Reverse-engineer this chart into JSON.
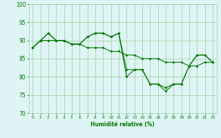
{
  "x": [
    0,
    1,
    2,
    3,
    4,
    5,
    6,
    7,
    8,
    9,
    10,
    11,
    12,
    13,
    14,
    15,
    16,
    17,
    18,
    19,
    20,
    21,
    22,
    23
  ],
  "line1": [
    88,
    90,
    92,
    90,
    90,
    89,
    89,
    91,
    92,
    92,
    91,
    92,
    80,
    82,
    82,
    78,
    78,
    77,
    78,
    78,
    83,
    86,
    86,
    84
  ],
  "line2": [
    88,
    90,
    92,
    90,
    90,
    89,
    89,
    91,
    92,
    92,
    91,
    92,
    82,
    82,
    82,
    78,
    78,
    76,
    78,
    78,
    83,
    86,
    86,
    84
  ],
  "line3": [
    88,
    90,
    90,
    90,
    90,
    89,
    89,
    88,
    88,
    88,
    87,
    87,
    86,
    86,
    85,
    85,
    85,
    84,
    84,
    84,
    83,
    83,
    84,
    84
  ],
  "background_color": "#dff4f4",
  "grid_color": "#99cc99",
  "line_color": "#007700",
  "marker": "D",
  "markersize": 2,
  "linewidth": 0.8,
  "xlabel": "Humidité relative (%)",
  "ylim": [
    70,
    100
  ],
  "xlim": [
    -0.5,
    23.5
  ],
  "yticks": [
    70,
    75,
    80,
    85,
    90,
    95,
    100
  ],
  "xticks": [
    0,
    1,
    2,
    3,
    4,
    5,
    6,
    7,
    8,
    9,
    10,
    11,
    12,
    13,
    14,
    15,
    16,
    17,
    18,
    19,
    20,
    21,
    22,
    23
  ]
}
